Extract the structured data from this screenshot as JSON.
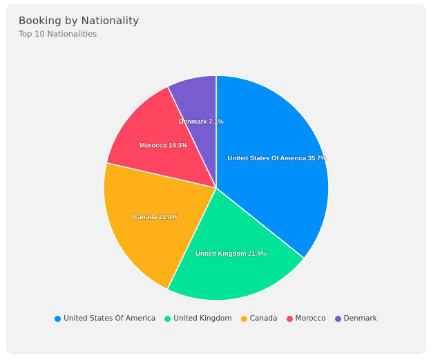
{
  "card": {
    "title": "Booking by Nationality",
    "subtitle": "Top 10 Nationalities"
  },
  "chart_data": {
    "type": "pie",
    "title": "Booking by Nationality",
    "subtitle": "Top 10 Nationalities",
    "slices": [
      {
        "label": "United States Of America",
        "value": 35.7,
        "color": "#008ffb"
      },
      {
        "label": "United Kingdom",
        "value": 21.4,
        "color": "#00e396"
      },
      {
        "label": "Canada",
        "value": 21.4,
        "color": "#feb019"
      },
      {
        "label": "Morocco",
        "value": 14.3,
        "color": "#ff4560"
      },
      {
        "label": "Denmark",
        "value": 7.1,
        "color": "#775dd0"
      }
    ],
    "data_labels": [
      "United States Of America 35.7%",
      "United Kingdom 21.4%",
      "Canada 21.4%",
      "Morocco 14.3%",
      "Denmark 7.1%"
    ],
    "legend_position": "bottom"
  }
}
